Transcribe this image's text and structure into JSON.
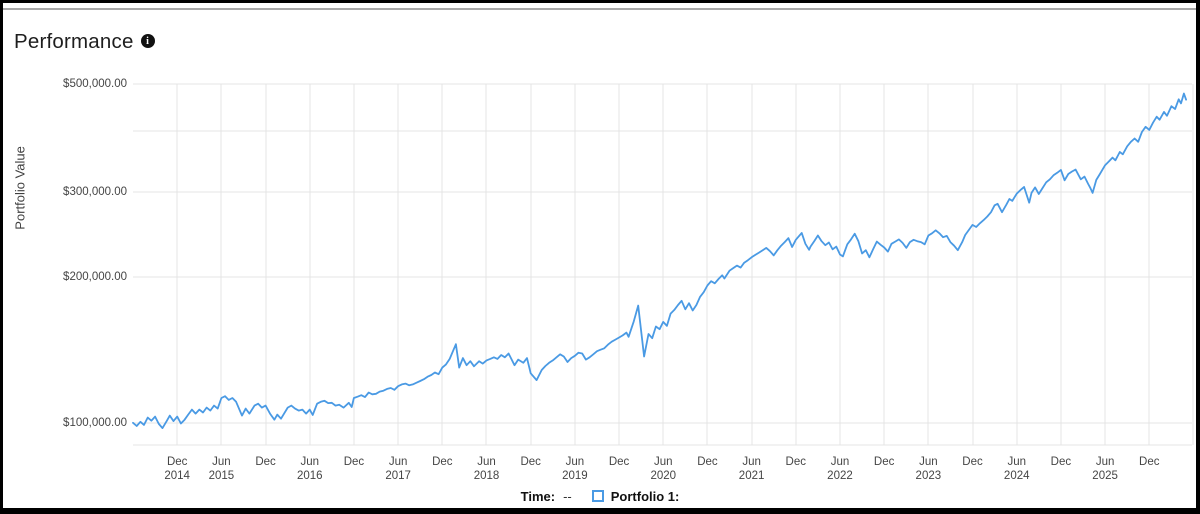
{
  "header": {
    "title": "Performance",
    "info_icon": "i"
  },
  "colors": {
    "series_blue": "#4a9ae4",
    "grid": "#e4e4e4",
    "tick_text": "#454545",
    "frame": "#000000",
    "divider": "#a8a8a8"
  },
  "legend": {
    "time_label": "Time:",
    "time_value": "--",
    "series_label": "Portfolio 1:"
  },
  "chart_data": {
    "type": "line",
    "title": "Performance",
    "ylabel": "Portfolio Value",
    "xlabel": "",
    "grid": true,
    "legend_position": "bottom",
    "y_scale": "log",
    "y_domain": [
      90000,
      500000
    ],
    "y_ticks": [
      {
        "value": 100000,
        "label": "$100,000.00"
      },
      {
        "value": 200000,
        "label": "$200,000.00"
      },
      {
        "value": 300000,
        "label": "$300,000.00"
      },
      {
        "value": 400000,
        "label": ""
      },
      {
        "value": 500000,
        "label": "$500,000.00"
      }
    ],
    "x_domain_months": 143.8,
    "first_tick_month": 6,
    "tick_interval_months": 6,
    "x_ticks": [
      {
        "month": "Dec",
        "year": "2014"
      },
      {
        "month": "Jun",
        "year": "2015"
      },
      {
        "month": "Dec",
        "year": ""
      },
      {
        "month": "Jun",
        "year": "2016"
      },
      {
        "month": "Dec",
        "year": ""
      },
      {
        "month": "Jun",
        "year": "2017"
      },
      {
        "month": "Dec",
        "year": ""
      },
      {
        "month": "Jun",
        "year": "2018"
      },
      {
        "month": "Dec",
        "year": ""
      },
      {
        "month": "Jun",
        "year": "2019"
      },
      {
        "month": "Dec",
        "year": ""
      },
      {
        "month": "Jun",
        "year": "2020"
      },
      {
        "month": "Dec",
        "year": ""
      },
      {
        "month": "Jun",
        "year": "2021"
      },
      {
        "month": "Dec",
        "year": ""
      },
      {
        "month": "Jun",
        "year": "2022"
      },
      {
        "month": "Dec",
        "year": ""
      },
      {
        "month": "Jun",
        "year": "2023"
      },
      {
        "month": "Dec",
        "year": ""
      },
      {
        "month": "Jun",
        "year": "2024"
      },
      {
        "month": "Dec",
        "year": ""
      },
      {
        "month": "Jun",
        "year": "2025"
      },
      {
        "month": "Dec",
        "year": ""
      }
    ],
    "series": [
      {
        "name": "Portfolio 1",
        "color": "#4a9ae4",
        "unit_multiplier": 1000,
        "points": [
          [
            0,
            100
          ],
          [
            0.5,
            98.5
          ],
          [
            1,
            100.5
          ],
          [
            1.5,
            99
          ],
          [
            2,
            102.5
          ],
          [
            2.5,
            101
          ],
          [
            3,
            103
          ],
          [
            3.5,
            99.5
          ],
          [
            4,
            97.5
          ],
          [
            4.6,
            101
          ],
          [
            5,
            103.5
          ],
          [
            5.5,
            100.8
          ],
          [
            6,
            103
          ],
          [
            6.5,
            99.7
          ],
          [
            7,
            101.5
          ],
          [
            7.5,
            104
          ],
          [
            8,
            106.5
          ],
          [
            8.5,
            104.5
          ],
          [
            9,
            106.5
          ],
          [
            9.5,
            105
          ],
          [
            10,
            107.5
          ],
          [
            10.5,
            106
          ],
          [
            11,
            108.5
          ],
          [
            11.5,
            107
          ],
          [
            12,
            112.5
          ],
          [
            12.5,
            113.5
          ],
          [
            13,
            111.5
          ],
          [
            13.5,
            112.5
          ],
          [
            14,
            110.5
          ],
          [
            14.8,
            103.5
          ],
          [
            15.3,
            107
          ],
          [
            15.8,
            104.5
          ],
          [
            16.5,
            108.5
          ],
          [
            17,
            109.5
          ],
          [
            17.5,
            107.5
          ],
          [
            18,
            108.5
          ],
          [
            18.6,
            104.5
          ],
          [
            19.2,
            101.5
          ],
          [
            19.6,
            104
          ],
          [
            20.1,
            102
          ],
          [
            21,
            107.5
          ],
          [
            21.5,
            108.5
          ],
          [
            22,
            107
          ],
          [
            22.5,
            106
          ],
          [
            23,
            106.5
          ],
          [
            23.5,
            104.5
          ],
          [
            24,
            106.5
          ],
          [
            24.4,
            103.8
          ],
          [
            25,
            109.5
          ],
          [
            25.5,
            110.5
          ],
          [
            26,
            111
          ],
          [
            26.5,
            109.8
          ],
          [
            27,
            110
          ],
          [
            27.5,
            108.5
          ],
          [
            28,
            109
          ],
          [
            28.6,
            107.5
          ],
          [
            29.3,
            110
          ],
          [
            29.7,
            107.8
          ],
          [
            30,
            112.5
          ],
          [
            30.5,
            113.2
          ],
          [
            31,
            114
          ],
          [
            31.5,
            113
          ],
          [
            32,
            115.5
          ],
          [
            32.5,
            114.5
          ],
          [
            33,
            114.8
          ],
          [
            33.5,
            116
          ],
          [
            34,
            116.5
          ],
          [
            34.5,
            117.5
          ],
          [
            35,
            118
          ],
          [
            35.5,
            117
          ],
          [
            36,
            119
          ],
          [
            36.5,
            120
          ],
          [
            37,
            120.5
          ],
          [
            37.5,
            119.5
          ],
          [
            38,
            120
          ],
          [
            38.5,
            121
          ],
          [
            39,
            122
          ],
          [
            39.5,
            123
          ],
          [
            40,
            124.5
          ],
          [
            40.5,
            125.5
          ],
          [
            41,
            127
          ],
          [
            41.5,
            126
          ],
          [
            42,
            130
          ],
          [
            42.5,
            132
          ],
          [
            43,
            135.5
          ],
          [
            43.85,
            145.3
          ],
          [
            44.3,
            130
          ],
          [
            44.8,
            136
          ],
          [
            45.3,
            131.5
          ],
          [
            45.8,
            134
          ],
          [
            46.3,
            130.8
          ],
          [
            47,
            134
          ],
          [
            47.5,
            132.5
          ],
          [
            48,
            134.5
          ],
          [
            48.5,
            135.5
          ],
          [
            49,
            136.5
          ],
          [
            49.5,
            135.5
          ],
          [
            50,
            138
          ],
          [
            50.5,
            136.5
          ],
          [
            51,
            139
          ],
          [
            51.8,
            131.5
          ],
          [
            52.3,
            135
          ],
          [
            53,
            133
          ],
          [
            53.5,
            136
          ],
          [
            54,
            126.5
          ],
          [
            54.8,
            122.5
          ],
          [
            55.5,
            128.5
          ],
          [
            56,
            131
          ],
          [
            56.5,
            133
          ],
          [
            57,
            134.5
          ],
          [
            57.5,
            136.5
          ],
          [
            58,
            138.5
          ],
          [
            58.5,
            137
          ],
          [
            59,
            133.5
          ],
          [
            59.5,
            136
          ],
          [
            60,
            137.5
          ],
          [
            60.5,
            139.5
          ],
          [
            61,
            139
          ],
          [
            61.5,
            135
          ],
          [
            62,
            136.5
          ],
          [
            62.5,
            138.5
          ],
          [
            63,
            140.5
          ],
          [
            63.5,
            141.5
          ],
          [
            64,
            142.5
          ],
          [
            64.5,
            145
          ],
          [
            65,
            147
          ],
          [
            65.5,
            148.5
          ],
          [
            66,
            150
          ],
          [
            66.5,
            151.5
          ],
          [
            67,
            153.5
          ],
          [
            67.3,
            150.5
          ],
          [
            68,
            162
          ],
          [
            68.6,
            174.5
          ],
          [
            69.4,
            137
          ],
          [
            70,
            152.5
          ],
          [
            70.5,
            149.5
          ],
          [
            71,
            158
          ],
          [
            71.5,
            156
          ],
          [
            72,
            161.5
          ],
          [
            72.5,
            158.5
          ],
          [
            73,
            168
          ],
          [
            73.5,
            171
          ],
          [
            74,
            175
          ],
          [
            74.5,
            178.5
          ],
          [
            75,
            171.5
          ],
          [
            75.5,
            176.5
          ],
          [
            76,
            170.5
          ],
          [
            76.5,
            175
          ],
          [
            77,
            182
          ],
          [
            77.5,
            186
          ],
          [
            78,
            192
          ],
          [
            78.5,
            196
          ],
          [
            79,
            194
          ],
          [
            79.5,
            198
          ],
          [
            80,
            201.5
          ],
          [
            80.3,
            198.5
          ],
          [
            81,
            206
          ],
          [
            81.5,
            208.5
          ],
          [
            82,
            211
          ],
          [
            82.5,
            209
          ],
          [
            83,
            214
          ],
          [
            83.5,
            216.5
          ],
          [
            84,
            219.5
          ],
          [
            84.5,
            222
          ],
          [
            85,
            224.5
          ],
          [
            85.5,
            227
          ],
          [
            86,
            229.5
          ],
          [
            86.5,
            226
          ],
          [
            87,
            221.5
          ],
          [
            87.5,
            227
          ],
          [
            88,
            232
          ],
          [
            88.5,
            236
          ],
          [
            89,
            240.5
          ],
          [
            89.5,
            230.5
          ],
          [
            90,
            238.5
          ],
          [
            90.8,
            246.5
          ],
          [
            91.3,
            234
          ],
          [
            91.8,
            227.5
          ],
          [
            92,
            231
          ],
          [
            92.5,
            237
          ],
          [
            93,
            243.5
          ],
          [
            93.5,
            237
          ],
          [
            94,
            232.5
          ],
          [
            94.5,
            235.5
          ],
          [
            95,
            228
          ],
          [
            95.5,
            231
          ],
          [
            96,
            222.5
          ],
          [
            96.4,
            220.5
          ],
          [
            97,
            233.5
          ],
          [
            97.5,
            239
          ],
          [
            98,
            245.5
          ],
          [
            98.5,
            237
          ],
          [
            99,
            223.5
          ],
          [
            99.5,
            227
          ],
          [
            100,
            219.5
          ],
          [
            100.5,
            228
          ],
          [
            101,
            236.5
          ],
          [
            101.5,
            233
          ],
          [
            102,
            230
          ],
          [
            102.5,
            225.5
          ],
          [
            103,
            234
          ],
          [
            103.5,
            236.5
          ],
          [
            104,
            239
          ],
          [
            104.5,
            235
          ],
          [
            105,
            229.5
          ],
          [
            105.5,
            236
          ],
          [
            106,
            238.5
          ],
          [
            106.5,
            237
          ],
          [
            107,
            236
          ],
          [
            107.5,
            233.5
          ],
          [
            108,
            243.5
          ],
          [
            108.5,
            246
          ],
          [
            109,
            249.5
          ],
          [
            109.5,
            246
          ],
          [
            110,
            241.5
          ],
          [
            110.5,
            243
          ],
          [
            111,
            236
          ],
          [
            111.5,
            232
          ],
          [
            112,
            227
          ],
          [
            112.6,
            236
          ],
          [
            113,
            244
          ],
          [
            113.5,
            250
          ],
          [
            114,
            256
          ],
          [
            114.5,
            253.5
          ],
          [
            115,
            258
          ],
          [
            115.5,
            262
          ],
          [
            116,
            266.5
          ],
          [
            116.5,
            272
          ],
          [
            117,
            281
          ],
          [
            117.4,
            283
          ],
          [
            118,
            272
          ],
          [
            118.6,
            282
          ],
          [
            119,
            289.5
          ],
          [
            119.4,
            287
          ],
          [
            120,
            297
          ],
          [
            120.5,
            302
          ],
          [
            121,
            306.5
          ],
          [
            121.7,
            284.5
          ],
          [
            122,
            298
          ],
          [
            122.5,
            306
          ],
          [
            123,
            296.5
          ],
          [
            123.5,
            305
          ],
          [
            124,
            313.5
          ],
          [
            124.5,
            318
          ],
          [
            125,
            324
          ],
          [
            125.5,
            328
          ],
          [
            126,
            332.5
          ],
          [
            126.5,
            316.5
          ],
          [
            127,
            326
          ],
          [
            127.5,
            330
          ],
          [
            128,
            333
          ],
          [
            128.7,
            318
          ],
          [
            129.2,
            322
          ],
          [
            129.7,
            311
          ],
          [
            130,
            305
          ],
          [
            130.3,
            298
          ],
          [
            130.8,
            317
          ],
          [
            131.3,
            326
          ],
          [
            132,
            340
          ],
          [
            132.5,
            346
          ],
          [
            133,
            352.5
          ],
          [
            133.4,
            348
          ],
          [
            134,
            362
          ],
          [
            134.4,
            358
          ],
          [
            135,
            372
          ],
          [
            135.5,
            380
          ],
          [
            136,
            386
          ],
          [
            136.5,
            380
          ],
          [
            137,
            398
          ],
          [
            137.5,
            408
          ],
          [
            138,
            402
          ],
          [
            138.5,
            416
          ],
          [
            139,
            428
          ],
          [
            139.4,
            422
          ],
          [
            140,
            438
          ],
          [
            140.4,
            430
          ],
          [
            141,
            450
          ],
          [
            141.5,
            444
          ],
          [
            142,
            465
          ],
          [
            142.3,
            456
          ],
          [
            142.7,
            478
          ],
          [
            143,
            464
          ]
        ]
      }
    ]
  }
}
